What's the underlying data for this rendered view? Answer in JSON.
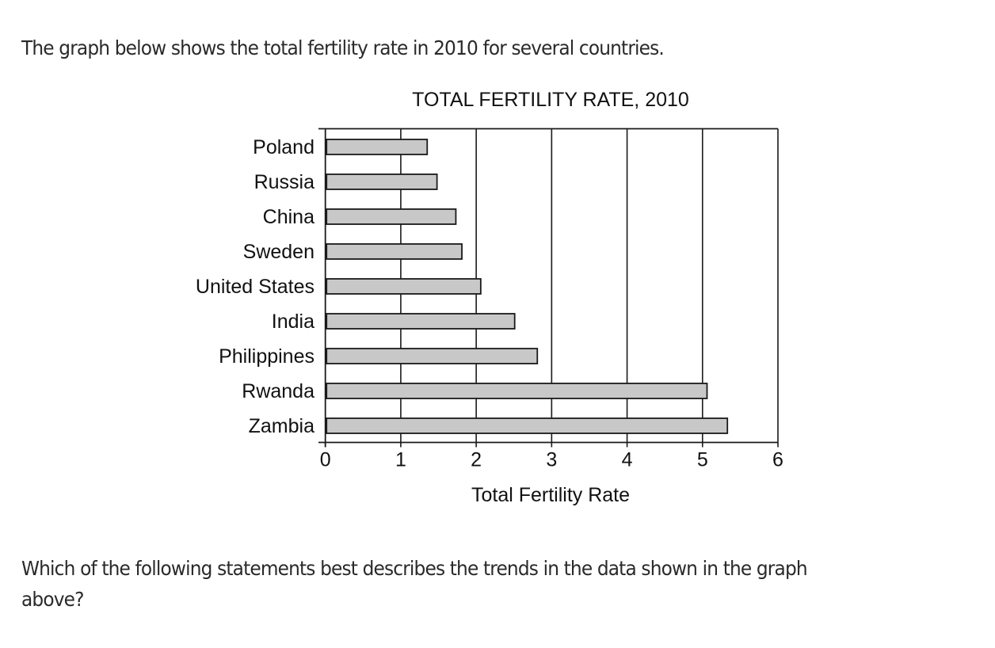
{
  "intro_text": "The graph below shows the total fertility rate in 2010 for several countries.",
  "question_lines": [
    "Which of the following statements best describes the trends in the data shown in the graph",
    "above?"
  ],
  "colors": {
    "bar_fill": "#c8c8c8",
    "bar_stroke": "#1a1a1a",
    "axis": "#1a1a1a",
    "text": "#2a2a2a"
  },
  "chart_data": {
    "type": "bar",
    "orientation": "horizontal",
    "title": "TOTAL FERTILITY RATE, 2010",
    "xlabel": "Total Fertility Rate",
    "ylabel": "",
    "categories": [
      "Poland",
      "Russia",
      "China",
      "Sweden",
      "United States",
      "India",
      "Philippines",
      "Rwanda",
      "Zambia"
    ],
    "values": [
      1.35,
      1.48,
      1.73,
      1.81,
      2.06,
      2.51,
      2.81,
      5.06,
      5.33
    ],
    "xlim": [
      0,
      6
    ],
    "xticks": [
      "0",
      "1",
      "2",
      "3",
      "4",
      "5",
      "6"
    ],
    "grid": "vertical",
    "legend": "none"
  }
}
